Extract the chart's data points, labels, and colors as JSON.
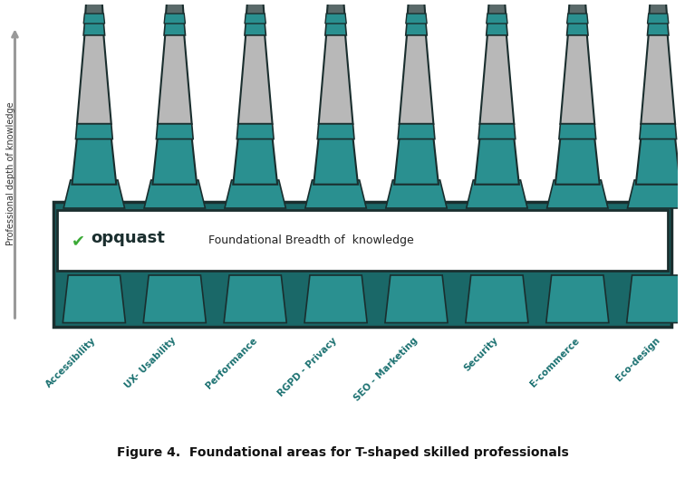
{
  "categories": [
    "Accessibility",
    "UX- Usability",
    "Performance",
    "RGPD - Privacy",
    "SEO - Marketing",
    "Security",
    "E-commerce",
    "Eco-design"
  ],
  "teal_color": "#2a9090",
  "teal_dark": "#1a6868",
  "dark_outline": "#1a2e2e",
  "dark_gray_top": "#5a6a6a",
  "gray_mid": "#b8b8b8",
  "white": "#ffffff",
  "background": "#ffffff",
  "label_color": "#1a7070",
  "title_color": "#111111",
  "opquast_green": "#3aaa35",
  "opquast_teal": "#1a7070",
  "figure_caption": "Figure 4.  Foundational areas for T-shaped skilled professionals",
  "ylabel": "Professional depth of knowledge",
  "foundational_text": "Foundational Breadth of  knowledge",
  "n_pyramids": 8
}
